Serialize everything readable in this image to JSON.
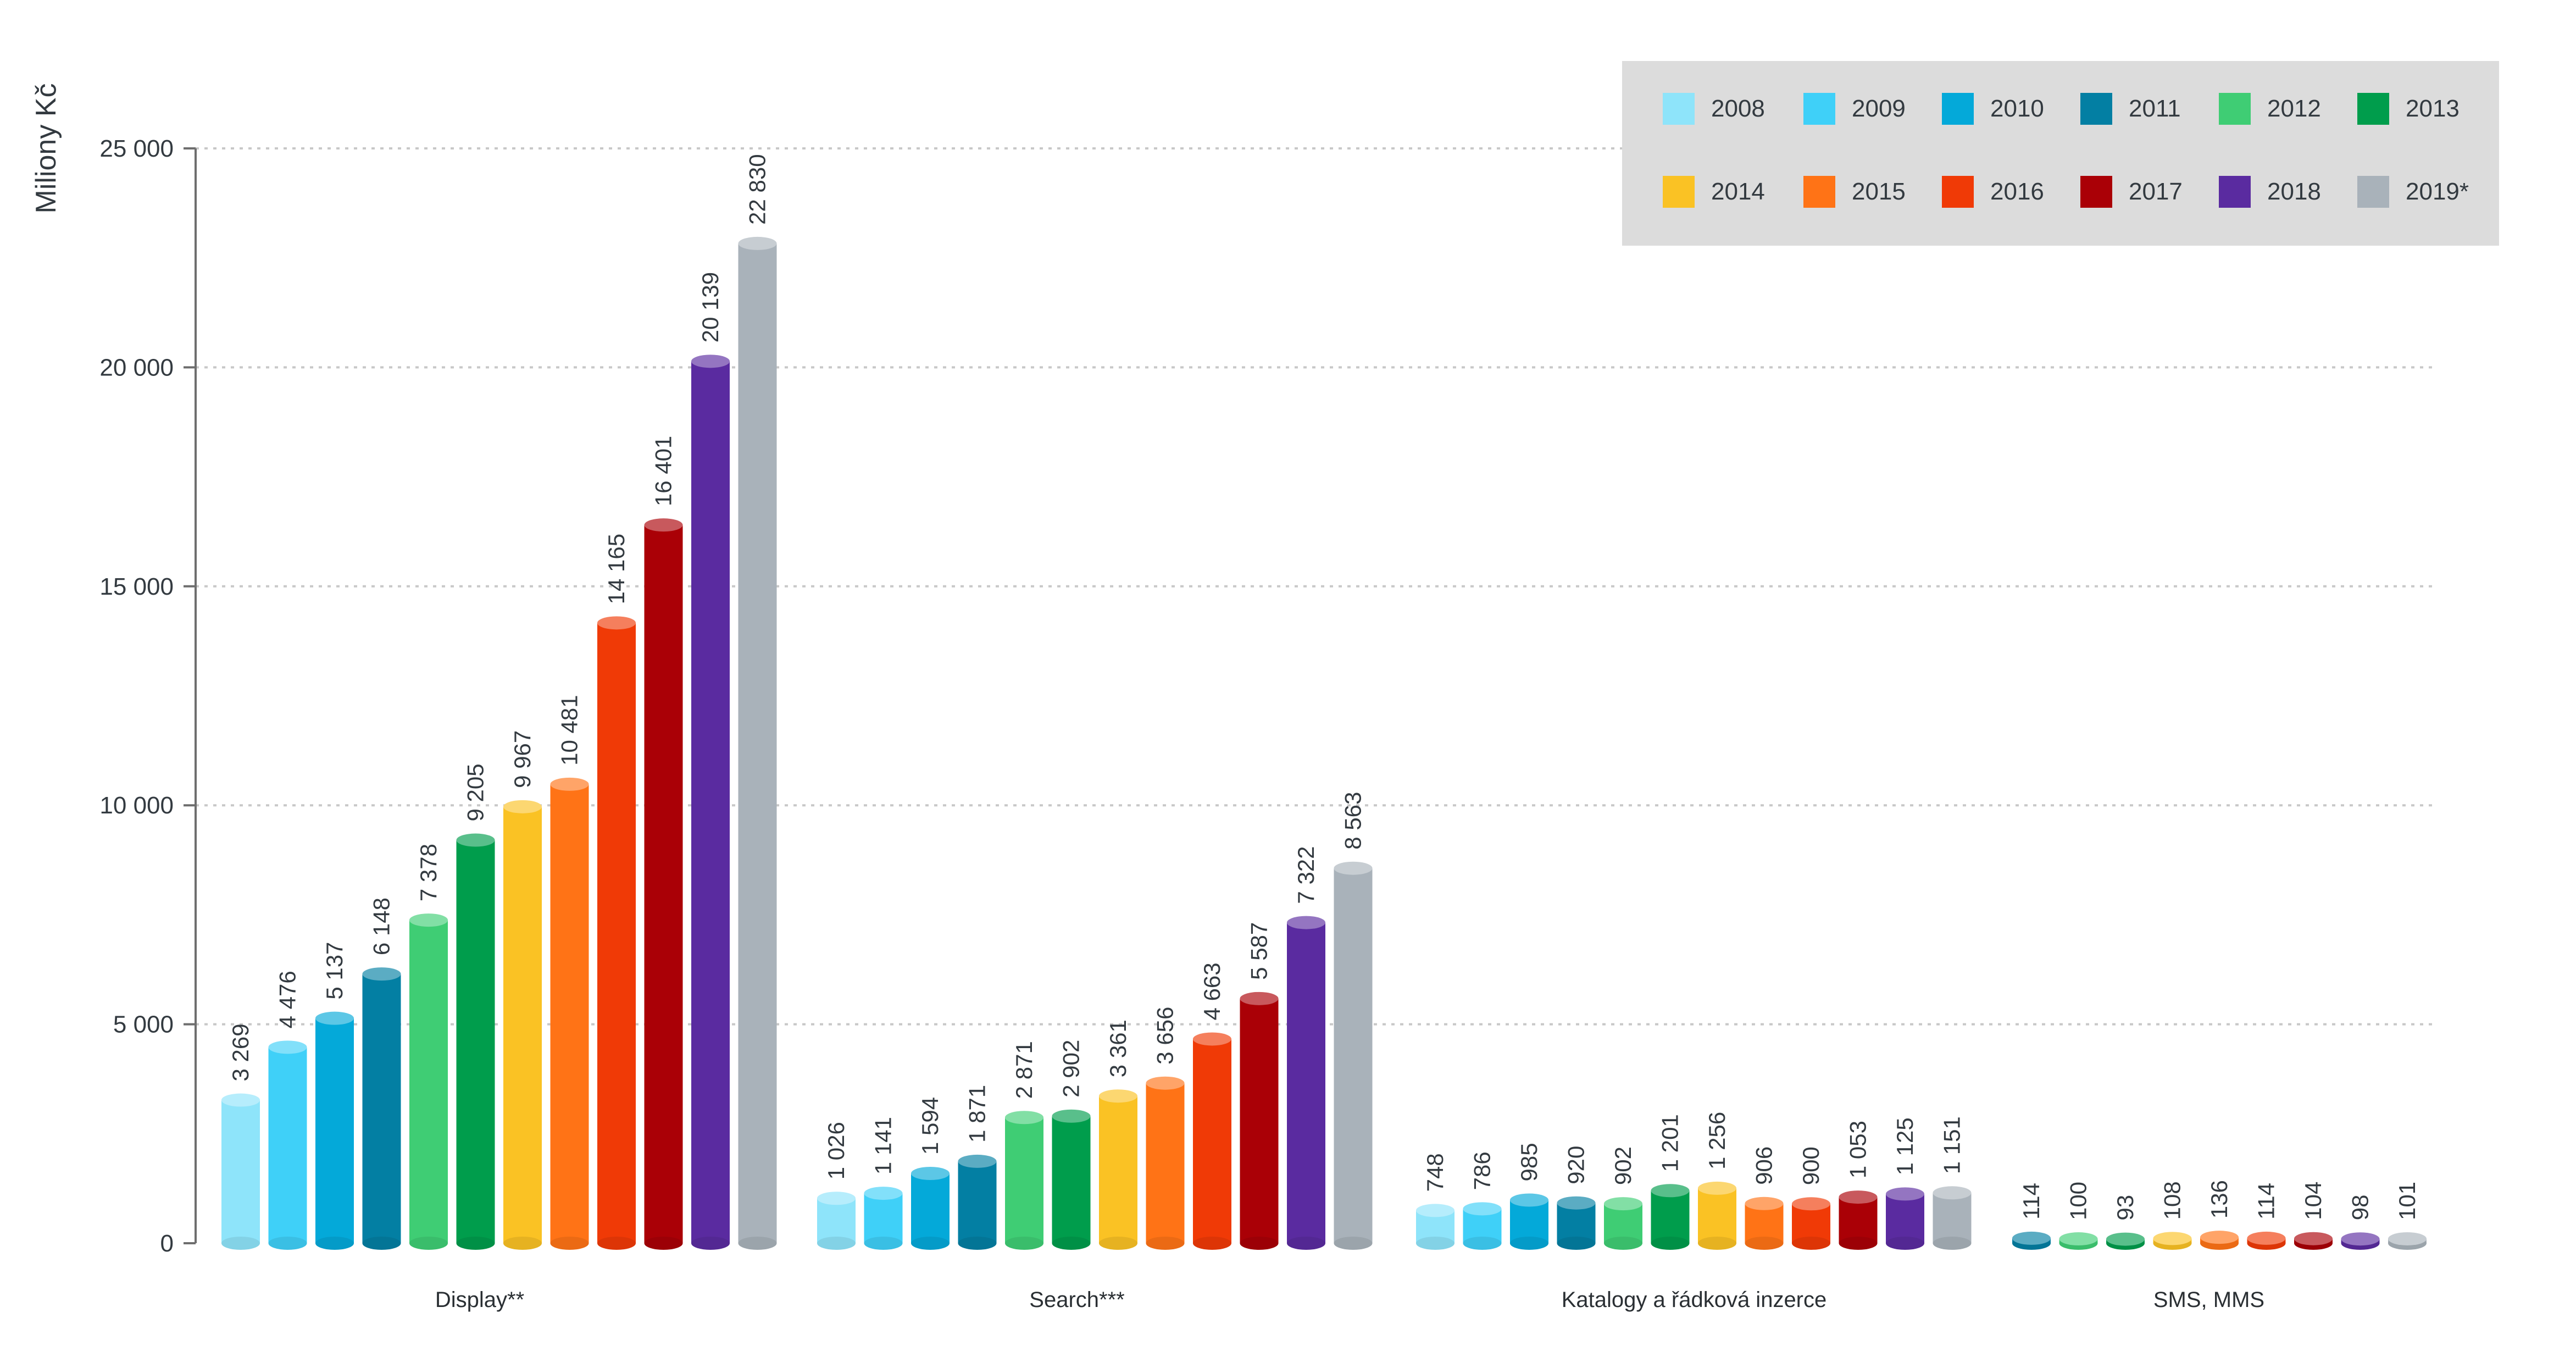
{
  "chart_data": {
    "type": "bar",
    "title": "",
    "xlabel": "",
    "ylabel": "Miliony Kč",
    "ylim": [
      0,
      25000
    ],
    "yticks": [
      0,
      5000,
      10000,
      15000,
      20000,
      25000
    ],
    "ytick_labels": [
      "0",
      "5 000",
      "10 000",
      "15 000",
      "20 000",
      "25 000"
    ],
    "grid": "horizontal dotted",
    "legend_position": "top-right",
    "categories": [
      "Display**",
      "Search***",
      "Katalogy a řádková inzerce",
      "SMS, MMS"
    ],
    "series": [
      {
        "name": "2008",
        "color": "#8ee4fa",
        "values": [
          3269,
          1026,
          748,
          null
        ],
        "labels": [
          "3 269",
          "1 026",
          "748",
          ""
        ]
      },
      {
        "name": "2009",
        "color": "#3fd0f8",
        "values": [
          4476,
          1141,
          786,
          null
        ],
        "labels": [
          "4 476",
          "1 141",
          "786",
          ""
        ]
      },
      {
        "name": "2010",
        "color": "#04a9d9",
        "values": [
          5137,
          1594,
          985,
          null
        ],
        "labels": [
          "5 137",
          "1 594",
          "985",
          ""
        ]
      },
      {
        "name": "2011",
        "color": "#037fa3",
        "values": [
          6148,
          1871,
          920,
          114
        ],
        "labels": [
          "6 148",
          "1 871",
          "920",
          "114"
        ]
      },
      {
        "name": "2012",
        "color": "#3fcd74",
        "values": [
          7378,
          2871,
          902,
          100
        ],
        "labels": [
          "7 378",
          "2 871",
          "902",
          "100"
        ]
      },
      {
        "name": "2013",
        "color": "#009d4c",
        "values": [
          9205,
          2902,
          1201,
          93
        ],
        "labels": [
          "9 205",
          "2 902",
          "1 201",
          "93"
        ]
      },
      {
        "name": "2014",
        "color": "#fac224",
        "values": [
          9967,
          3361,
          1256,
          108
        ],
        "labels": [
          "9 967",
          "3 361",
          "1 256",
          "108"
        ]
      },
      {
        "name": "2015",
        "color": "#ff7316",
        "values": [
          10481,
          3656,
          906,
          136
        ],
        "labels": [
          "10 481",
          "3 656",
          "906",
          "136"
        ]
      },
      {
        "name": "2016",
        "color": "#f03a06",
        "values": [
          14165,
          4663,
          900,
          114
        ],
        "labels": [
          "14 165",
          "4 663",
          "900",
          "114"
        ]
      },
      {
        "name": "2017",
        "color": "#aa0006",
        "values": [
          16401,
          5587,
          1053,
          104
        ],
        "labels": [
          "16 401",
          "5 587",
          "1 053",
          "104"
        ]
      },
      {
        "name": "2018",
        "color": "#5a2ba0",
        "values": [
          20139,
          7322,
          1125,
          98
        ],
        "labels": [
          "20 139",
          "7 322",
          "1 125",
          "98"
        ]
      },
      {
        "name": "2019*",
        "color": "#a9b2ba",
        "values": [
          22830,
          8563,
          1151,
          101
        ],
        "labels": [
          "22 830",
          "8 563",
          "1 151",
          "101"
        ]
      }
    ]
  }
}
